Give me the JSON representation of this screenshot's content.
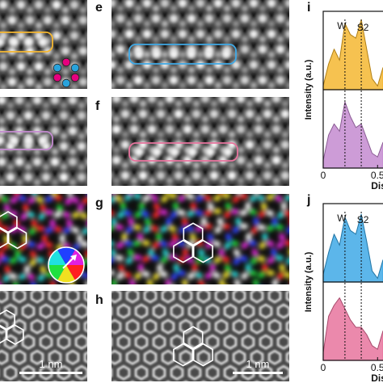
{
  "panels": {
    "e": "e",
    "f": "f",
    "g": "g",
    "h": "h",
    "i": "i",
    "j": "j"
  },
  "scalebars": {
    "left": "1 nm",
    "right": "1 nm"
  },
  "colors": {
    "yellow": "#f5b731",
    "blue": "#3fa9e6",
    "violet": "#c48bd0",
    "pink": "#e8749e",
    "magenta_dot": "#e6007e",
    "cyan_dot": "#29a3dc"
  },
  "chart_data": [
    {
      "type": "line",
      "panel": "i",
      "ylabel": "Intensity (a.u.)",
      "xlabel": "Dis",
      "x_ticks": [
        "0",
        "0.5"
      ],
      "annotations": [
        "W",
        "S2"
      ],
      "series": [
        {
          "color": "#f5b731",
          "x": [
            0.0,
            0.05,
            0.1,
            0.15,
            0.2,
            0.25,
            0.3,
            0.35,
            0.4,
            0.45,
            0.5,
            0.55
          ],
          "y": [
            0.05,
            0.35,
            0.55,
            0.4,
            0.9,
            0.75,
            0.7,
            0.95,
            0.55,
            0.15,
            0.05,
            0.3
          ]
        },
        {
          "color": "#c48bd0",
          "x": [
            0.0,
            0.05,
            0.1,
            0.15,
            0.2,
            0.25,
            0.3,
            0.35,
            0.4,
            0.45,
            0.5,
            0.55
          ],
          "y": [
            0.1,
            0.45,
            0.6,
            0.5,
            0.9,
            0.7,
            0.55,
            0.6,
            0.4,
            0.2,
            0.15,
            0.35
          ]
        }
      ]
    },
    {
      "type": "line",
      "panel": "j",
      "ylabel": "Intensity (a.u.)",
      "xlabel": "Dis",
      "x_ticks": [
        "0",
        "0.5"
      ],
      "annotations": [
        "W",
        "S2"
      ],
      "series": [
        {
          "color": "#3fa9e6",
          "x": [
            0.0,
            0.05,
            0.1,
            0.15,
            0.2,
            0.25,
            0.3,
            0.35,
            0.4,
            0.45,
            0.5,
            0.55
          ],
          "y": [
            0.1,
            0.4,
            0.65,
            0.5,
            0.88,
            0.7,
            0.65,
            0.92,
            0.55,
            0.15,
            0.05,
            0.3
          ]
        },
        {
          "color": "#e8749e",
          "x": [
            0.0,
            0.05,
            0.1,
            0.15,
            0.2,
            0.25,
            0.3,
            0.35,
            0.4,
            0.45,
            0.5,
            0.55
          ],
          "y": [
            0.1,
            0.6,
            0.75,
            0.85,
            0.7,
            0.55,
            0.45,
            0.45,
            0.35,
            0.2,
            0.15,
            0.4
          ]
        }
      ]
    }
  ]
}
